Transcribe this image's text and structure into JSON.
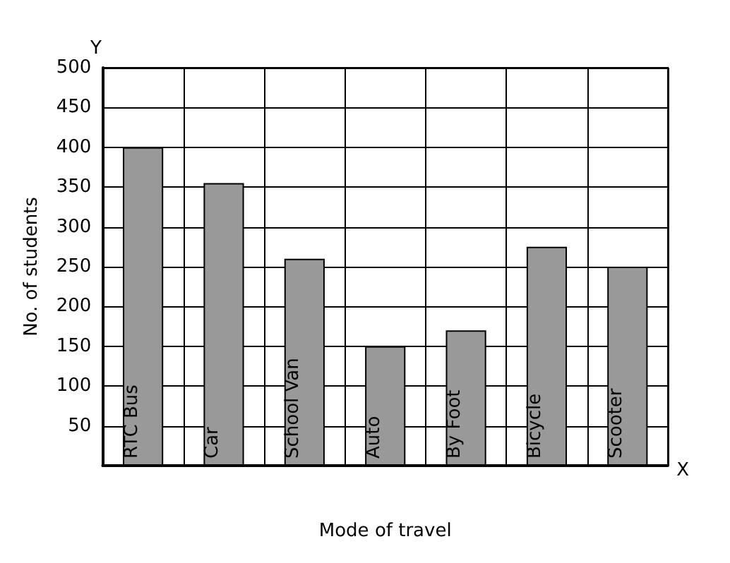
{
  "chart_data": {
    "type": "bar",
    "xlabel": "Mode of travel",
    "ylabel": "No. of students",
    "categories": [
      "RTC Bus",
      "Car",
      "School Van",
      "Auto",
      "By Foot",
      "Bicycle",
      "Scooter"
    ],
    "values": [
      400,
      355,
      260,
      150,
      170,
      275,
      250
    ],
    "color": "#999999",
    "ylim": [
      0,
      500
    ],
    "yticks": [
      50,
      100,
      150,
      200,
      250,
      300,
      350,
      400,
      450,
      500
    ],
    "grid": true,
    "annotations": [
      "Y",
      "X"
    ]
  }
}
